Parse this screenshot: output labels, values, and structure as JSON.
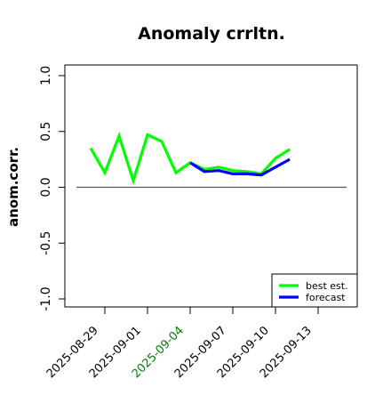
{
  "chart_data": {
    "type": "line",
    "title": "Anomaly crrltn.",
    "xlabel": "",
    "ylabel": "anom.corr.",
    "ylim": [
      -1.0,
      1.0
    ],
    "xlim": [
      "2025-08-27",
      "2025-09-15"
    ],
    "x": [
      "2025-08-28",
      "2025-08-29",
      "2025-08-30",
      "2025-08-31",
      "2025-09-01",
      "2025-09-02",
      "2025-09-03",
      "2025-09-04",
      "2025-09-05",
      "2025-09-06",
      "2025-09-07",
      "2025-09-08",
      "2025-09-09",
      "2025-09-10",
      "2025-09-11"
    ],
    "x_ticks": [
      "2025-08-29",
      "2025-09-01",
      "2025-09-04",
      "2025-09-07",
      "2025-09-10",
      "2025-09-13"
    ],
    "x_tick_colors": [
      "#000000",
      "#000000",
      "#008000",
      "#000000",
      "#000000",
      "#000000"
    ],
    "y_ticks": [
      "-1.0",
      "-0.5",
      "0.0",
      "0.5",
      "1.0"
    ],
    "y_tick_values": [
      -1.0,
      -0.5,
      0.0,
      0.5,
      1.0
    ],
    "reference_line": 0.0,
    "legend_position": "bottom-right",
    "series": [
      {
        "name": "best est.",
        "color": "#00ff00",
        "x": [
          "2025-08-28",
          "2025-08-29",
          "2025-08-30",
          "2025-08-31",
          "2025-09-01",
          "2025-09-02",
          "2025-09-03",
          "2025-09-04",
          "2025-09-05",
          "2025-09-06",
          "2025-09-07",
          "2025-09-08",
          "2025-09-09",
          "2025-09-10",
          "2025-09-11"
        ],
        "values": [
          0.35,
          0.13,
          0.46,
          0.06,
          0.47,
          0.41,
          0.13,
          0.22,
          0.16,
          0.18,
          0.15,
          0.14,
          0.12,
          0.26,
          0.34
        ]
      },
      {
        "name": "forecast",
        "color": "#0000ff",
        "x": [
          "2025-09-04",
          "2025-09-05",
          "2025-09-06",
          "2025-09-07",
          "2025-09-08",
          "2025-09-09",
          "2025-09-10",
          "2025-09-11"
        ],
        "values": [
          0.22,
          0.14,
          0.15,
          0.12,
          0.12,
          0.11,
          0.18,
          0.25
        ]
      }
    ]
  }
}
